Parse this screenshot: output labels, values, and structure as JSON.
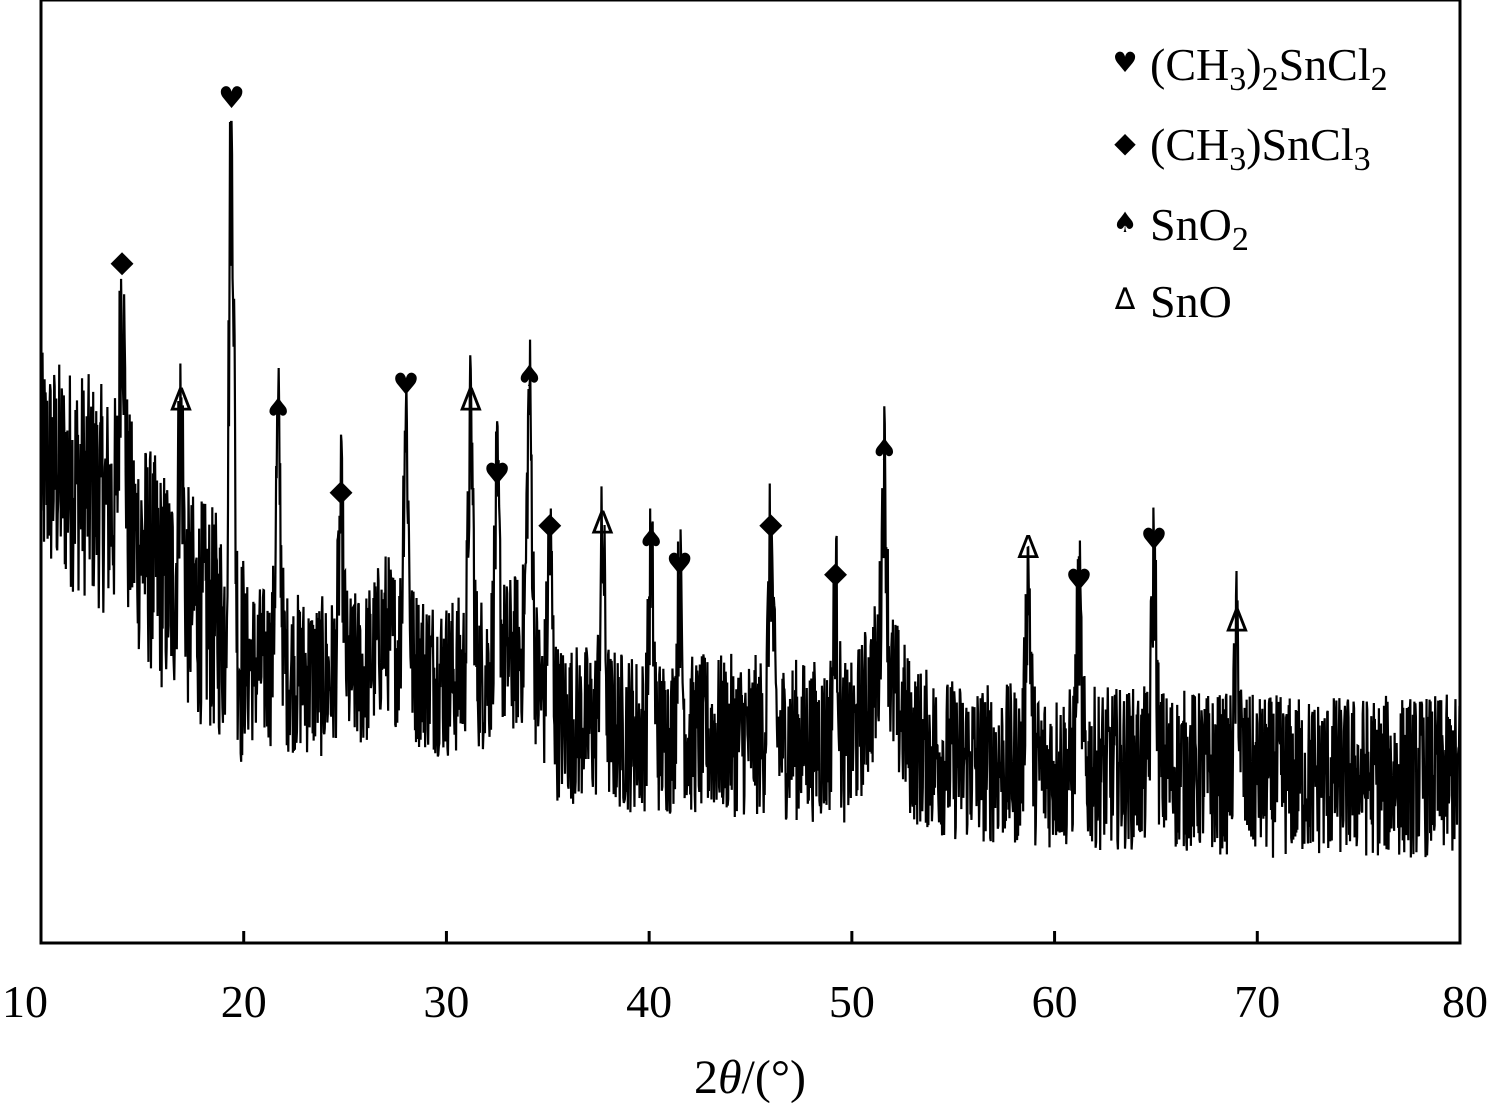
{
  "chart_data": {
    "type": "line",
    "xlabel_prefix": "2",
    "xlabel_theta": "θ",
    "xlabel_suffix": "/(°)",
    "ylabel": "",
    "xlim": [
      10,
      80
    ],
    "xticks": [
      10,
      20,
      30,
      40,
      50,
      60,
      70,
      80
    ],
    "y_ticks_shown": false,
    "grid": false,
    "legend_position": "top-right",
    "legend": [
      {
        "symbol": "♥",
        "parts": [
          [
            "(CH",
            ""
          ],
          [
            "3",
            "sub"
          ],
          [
            ")",
            ""
          ],
          [
            "2",
            "sub"
          ],
          [
            "SnCl",
            ""
          ],
          [
            "2",
            "sub"
          ]
        ]
      },
      {
        "symbol": "◆",
        "parts": [
          [
            "(CH",
            ""
          ],
          [
            "3",
            "sub"
          ],
          [
            ")SnCl",
            ""
          ],
          [
            "3",
            "sub"
          ]
        ]
      },
      {
        "symbol": "♠",
        "parts": [
          [
            "SnO",
            ""
          ],
          [
            "2",
            "sub"
          ]
        ]
      },
      {
        "symbol": "∆",
        "parts": [
          [
            "SnO",
            ""
          ]
        ]
      }
    ],
    "baseline": [
      [
        10,
        58
      ],
      [
        12,
        56
      ],
      [
        14,
        52
      ],
      [
        16,
        44
      ],
      [
        18,
        40
      ],
      [
        19,
        38
      ],
      [
        20,
        34
      ],
      [
        22,
        33
      ],
      [
        24,
        32
      ],
      [
        26,
        33
      ],
      [
        27,
        38
      ],
      [
        28,
        34
      ],
      [
        30,
        32
      ],
      [
        32,
        33
      ],
      [
        34,
        36
      ],
      [
        35,
        27
      ],
      [
        38,
        26
      ],
      [
        40,
        25
      ],
      [
        45,
        25
      ],
      [
        50,
        24
      ],
      [
        51.5,
        34
      ],
      [
        53,
        24
      ],
      [
        55,
        22
      ],
      [
        60,
        21
      ],
      [
        65,
        21
      ],
      [
        70,
        20
      ],
      [
        75,
        20
      ],
      [
        80,
        20
      ]
    ],
    "noise_amplitude": 10,
    "peaks": [
      {
        "x": 14.0,
        "y": 80,
        "phase": "(CH3)SnCl3"
      },
      {
        "x": 16.9,
        "y": 63,
        "phase": "SnO"
      },
      {
        "x": 19.4,
        "y": 100,
        "phase": "(CH3)2SnCl2"
      },
      {
        "x": 21.7,
        "y": 62,
        "phase": "SnO2"
      },
      {
        "x": 24.8,
        "y": 52,
        "phase": "(CH3)SnCl3"
      },
      {
        "x": 28.0,
        "y": 65,
        "phase": "(CH3)2SnCl2"
      },
      {
        "x": 31.2,
        "y": 63,
        "phase": "SnO"
      },
      {
        "x": 32.5,
        "y": 54,
        "phase": "(CH3)2SnCl2"
      },
      {
        "x": 34.1,
        "y": 66,
        "phase": "SnO2"
      },
      {
        "x": 35.1,
        "y": 48,
        "phase": "(CH3)SnCl3"
      },
      {
        "x": 37.7,
        "y": 48,
        "phase": "SnO"
      },
      {
        "x": 40.1,
        "y": 46,
        "phase": "SnO2"
      },
      {
        "x": 41.5,
        "y": 43,
        "phase": "(CH3)2SnCl2"
      },
      {
        "x": 46.0,
        "y": 48,
        "phase": "(CH3)SnCl3"
      },
      {
        "x": 49.2,
        "y": 42,
        "phase": "(CH3)SnCl3"
      },
      {
        "x": 51.6,
        "y": 57,
        "phase": "SnO2"
      },
      {
        "x": 58.7,
        "y": 45,
        "phase": "SnO"
      },
      {
        "x": 61.2,
        "y": 41,
        "phase": "(CH3)2SnCl2"
      },
      {
        "x": 64.9,
        "y": 46,
        "phase": "(CH3)2SnCl2"
      },
      {
        "x": 69.0,
        "y": 36,
        "phase": "SnO"
      }
    ],
    "phase_symbols": {
      "(CH3)2SnCl2": "♥",
      "(CH3)SnCl3": "◆",
      "SnO2": "♠",
      "SnO": "∆"
    }
  }
}
